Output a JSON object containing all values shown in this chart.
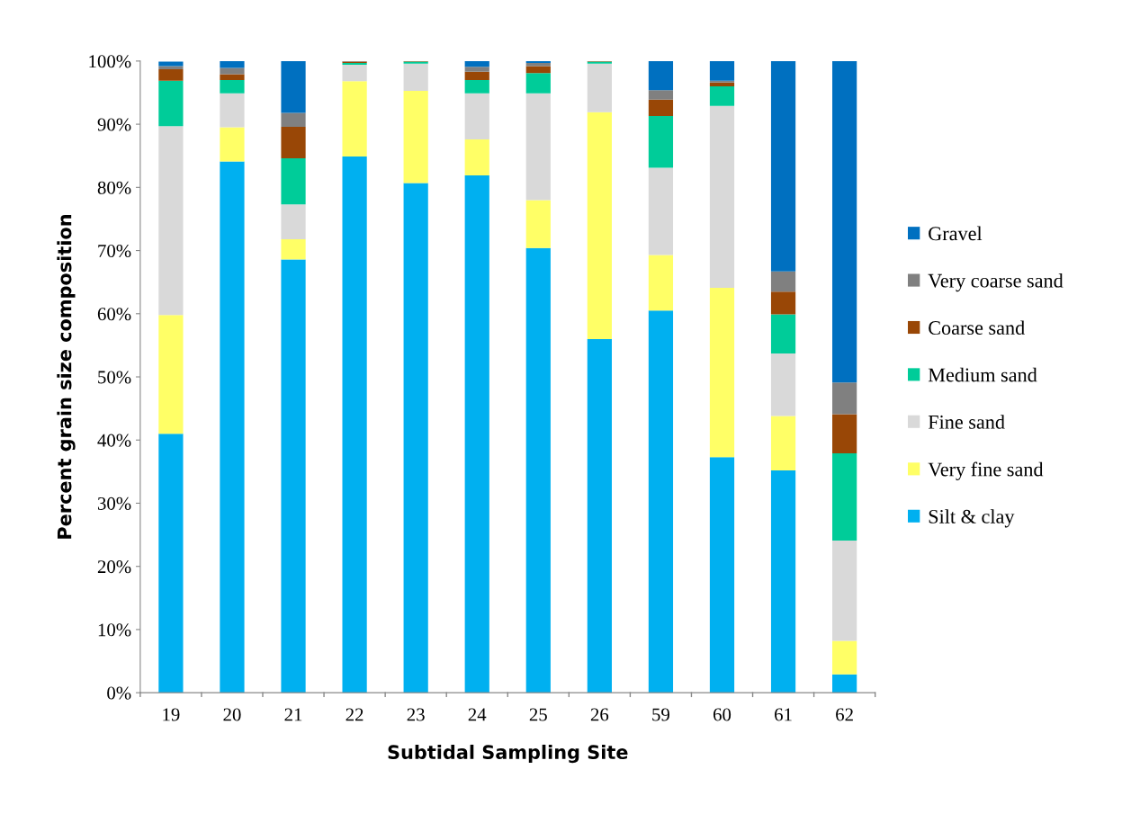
{
  "chart_data": {
    "type": "bar",
    "stacked": true,
    "xlabel": "Subtidal Sampling Site",
    "ylabel": "Percent grain size composition",
    "categories": [
      "19",
      "20",
      "21",
      "22",
      "23",
      "24",
      "25",
      "26",
      "59",
      "60",
      "61",
      "62"
    ],
    "series": [
      {
        "name": "Silt & clay",
        "color": "#00b0f0",
        "values": [
          41.0,
          84.1,
          68.6,
          84.9,
          80.7,
          81.9,
          70.4,
          56.0,
          60.5,
          37.3,
          35.2,
          2.9
        ]
      },
      {
        "name": "Very fine sand",
        "color": "#ffff66",
        "values": [
          18.8,
          5.4,
          3.2,
          11.9,
          14.6,
          5.7,
          7.6,
          35.9,
          8.8,
          26.8,
          8.6,
          5.3
        ]
      },
      {
        "name": "Fine sand",
        "color": "#d9d9d9",
        "values": [
          29.9,
          5.4,
          5.5,
          2.6,
          4.3,
          7.3,
          16.9,
          7.7,
          13.8,
          28.8,
          9.9,
          15.9
        ]
      },
      {
        "name": "Medium sand",
        "color": "#00cc99",
        "values": [
          7.2,
          2.1,
          7.3,
          0.3,
          0.3,
          2.1,
          3.2,
          0.3,
          8.2,
          3.1,
          6.2,
          13.8
        ]
      },
      {
        "name": "Coarse sand",
        "color": "#994706",
        "values": [
          1.8,
          0.9,
          5.0,
          0.2,
          0.1,
          1.3,
          1.1,
          0.1,
          2.6,
          0.6,
          3.6,
          6.2
        ]
      },
      {
        "name": "Very coarse sand",
        "color": "#808080",
        "values": [
          0.5,
          1.0,
          2.2,
          0.1,
          0.0,
          0.8,
          0.5,
          0.0,
          1.5,
          0.3,
          3.2,
          5.0
        ]
      },
      {
        "name": "Gravel",
        "color": "#0070c0",
        "values": [
          0.7,
          1.1,
          8.2,
          0.0,
          0.0,
          0.9,
          0.3,
          0.0,
          4.6,
          3.1,
          33.3,
          50.9
        ]
      }
    ],
    "ylim": [
      0,
      100
    ],
    "yticks": [
      {
        "value": 0,
        "label": "0%"
      },
      {
        "value": 10,
        "label": "10%"
      },
      {
        "value": 20,
        "label": "20%"
      },
      {
        "value": 30,
        "label": "30%"
      },
      {
        "value": 40,
        "label": "40%"
      },
      {
        "value": 50,
        "label": "50%"
      },
      {
        "value": 60,
        "label": "60%"
      },
      {
        "value": 70,
        "label": "70%"
      },
      {
        "value": 80,
        "label": "80%"
      },
      {
        "value": 90,
        "label": "90%"
      },
      {
        "value": 100,
        "label": "100%"
      }
    ],
    "grid": false,
    "legend": "right"
  }
}
